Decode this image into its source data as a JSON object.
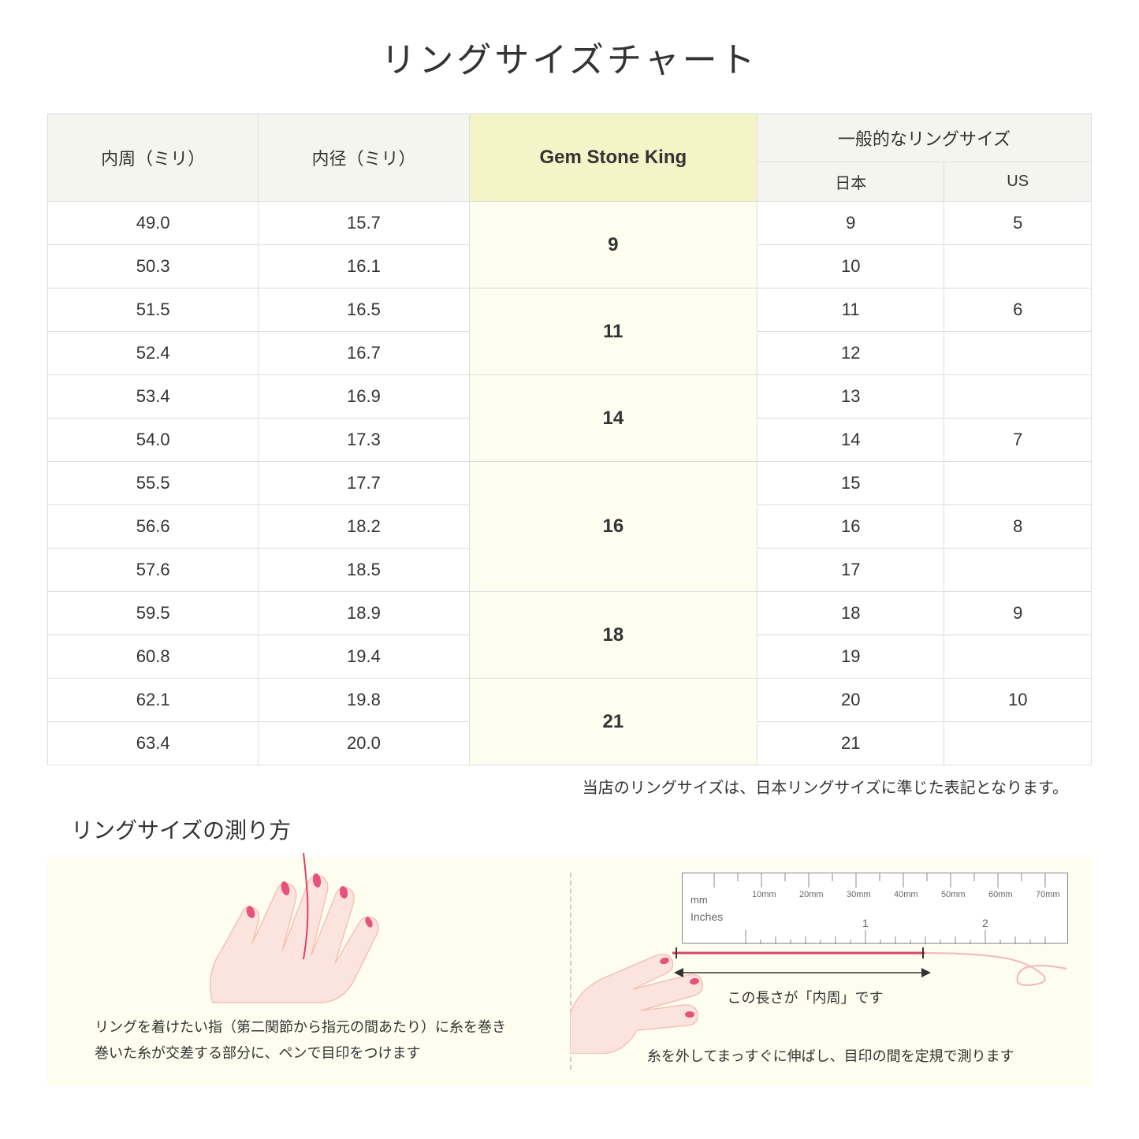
{
  "title": "リングサイズチャート",
  "table": {
    "headers": {
      "circumference": "内周（ミリ）",
      "diameter": "内径（ミリ）",
      "gsk": "Gem Stone King",
      "general": "一般的なリングサイズ",
      "japan": "日本",
      "us": "US"
    },
    "groups": [
      {
        "gsk": "9",
        "rows": [
          {
            "circ": "49.0",
            "dia": "15.7",
            "jp": "9",
            "us": "5"
          },
          {
            "circ": "50.3",
            "dia": "16.1",
            "jp": "10",
            "us": ""
          }
        ]
      },
      {
        "gsk": "11",
        "rows": [
          {
            "circ": "51.5",
            "dia": "16.5",
            "jp": "11",
            "us": "6"
          },
          {
            "circ": "52.4",
            "dia": "16.7",
            "jp": "12",
            "us": ""
          }
        ]
      },
      {
        "gsk": "14",
        "rows": [
          {
            "circ": "53.4",
            "dia": "16.9",
            "jp": "13",
            "us": ""
          },
          {
            "circ": "54.0",
            "dia": "17.3",
            "jp": "14",
            "us": "7"
          }
        ]
      },
      {
        "gsk": "16",
        "rows": [
          {
            "circ": "55.5",
            "dia": "17.7",
            "jp": "15",
            "us": ""
          },
          {
            "circ": "56.6",
            "dia": "18.2",
            "jp": "16",
            "us": "8"
          },
          {
            "circ": "57.6",
            "dia": "18.5",
            "jp": "17",
            "us": ""
          }
        ]
      },
      {
        "gsk": "18",
        "rows": [
          {
            "circ": "59.5",
            "dia": "18.9",
            "jp": "18",
            "us": "9"
          },
          {
            "circ": "60.8",
            "dia": "19.4",
            "jp": "19",
            "us": ""
          }
        ]
      },
      {
        "gsk": "21",
        "rows": [
          {
            "circ": "62.1",
            "dia": "19.8",
            "jp": "20",
            "us": "10"
          },
          {
            "circ": "63.4",
            "dia": "20.0",
            "jp": "21",
            "us": ""
          }
        ]
      }
    ]
  },
  "note": "当店のリングサイズは、日本リングサイズに準じた表記となります。",
  "howto": {
    "title": "リングサイズの測り方",
    "left_caption": "リングを着けたい指（第二関節から指元の間あたり）に糸を巻き\n巻いた糸が交差する部分に、ペンで目印をつけます",
    "right_caption": "糸を外してまっすぐに伸ばし、目印の間を定規で測ります",
    "measure_label": "この長さが「内周」です",
    "ruler_mm": "mm",
    "ruler_inches": "Inches",
    "ruler_ticks": [
      "10mm",
      "20mm",
      "30mm",
      "40mm",
      "50mm",
      "60mm",
      "70mm"
    ],
    "ruler_inch_ticks": [
      "1",
      "2"
    ]
  },
  "colors": {
    "header_bg": "#f5f5f0",
    "highlight_bg": "#f3f4c8",
    "highlight_cell_bg": "#fdfdf0",
    "panel_bg": "#fdfdf0",
    "hand_fill": "#fce4de",
    "hand_stroke": "#f5c2b5",
    "nail_color": "#e6527a",
    "thread_color": "#d9436b",
    "border_color": "#dddddd"
  }
}
